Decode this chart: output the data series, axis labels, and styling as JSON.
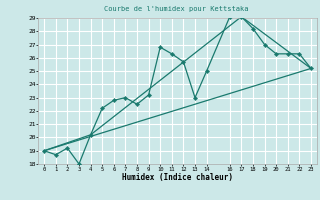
{
  "title": "Courbe de l'humidex pour Kettstaka",
  "xlabel": "Humidex (Indice chaleur)",
  "ylabel": "",
  "xlim": [
    -0.5,
    23.5
  ],
  "ylim": [
    18,
    29
  ],
  "yticks": [
    18,
    19,
    20,
    21,
    22,
    23,
    24,
    25,
    26,
    27,
    28,
    29
  ],
  "xticks": [
    0,
    1,
    2,
    3,
    4,
    5,
    6,
    7,
    8,
    9,
    10,
    11,
    12,
    13,
    14,
    16,
    17,
    18,
    19,
    20,
    21,
    22,
    23
  ],
  "bg_color": "#cce8e8",
  "grid_color": "#ffffff",
  "line_color": "#1a7a6e",
  "line1_x": [
    0,
    1,
    2,
    3,
    4,
    5,
    6,
    7,
    8,
    9,
    10,
    11,
    12,
    13,
    14,
    16,
    17,
    18,
    19,
    20,
    21,
    22,
    23
  ],
  "line1_y": [
    19.0,
    18.7,
    19.2,
    18.0,
    20.2,
    22.2,
    22.8,
    23.0,
    22.5,
    23.2,
    26.8,
    26.3,
    25.7,
    23.0,
    25.0,
    29.1,
    29.1,
    28.2,
    27.0,
    26.3,
    26.3,
    26.3,
    25.2
  ],
  "line2_x": [
    0,
    23
  ],
  "line2_y": [
    19.0,
    25.2
  ],
  "line3_x": [
    0,
    4,
    17,
    23
  ],
  "line3_y": [
    19.0,
    20.2,
    29.1,
    25.2
  ]
}
